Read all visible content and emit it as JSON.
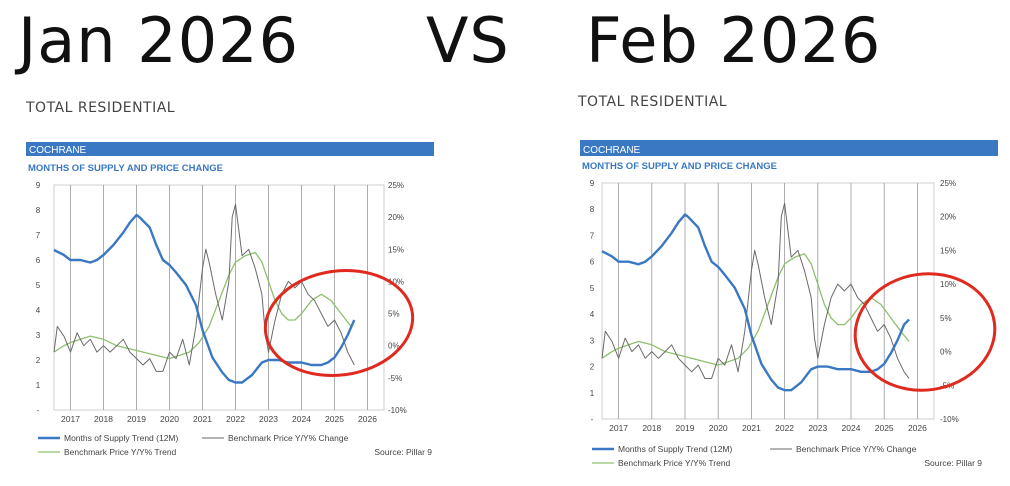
{
  "header": {
    "left_title": "Jan 2026",
    "vs_label": "VS",
    "right_title": "Feb 2026"
  },
  "chart_data": [
    {
      "type": "line",
      "section_title": "TOTAL RESIDENTIAL",
      "region_label": "COCHRANE",
      "title": "MONTHS OF SUPPLY AND PRICE CHANGE",
      "x_ticks": [
        "2017",
        "2018",
        "2019",
        "2020",
        "2021",
        "2022",
        "2023",
        "2024",
        "2025",
        "2026"
      ],
      "y_left_ticks": [
        "9",
        "8",
        "7",
        "6",
        "5",
        "4",
        "3",
        "2",
        "1",
        "-"
      ],
      "y_right_ticks": [
        "25%",
        "20%",
        "15%",
        "10%",
        "5%",
        "0%",
        "-5%",
        "-10%"
      ],
      "y_left_range": [
        0,
        9
      ],
      "y_right_range": [
        -10,
        25
      ],
      "x_range": [
        2016.5,
        2026.5
      ],
      "grid": "vertical",
      "legend": {
        "position": "bottom-left",
        "entries": [
          "Months of Supply Trend (12M)",
          "Benchmark Price Y/Y% Change",
          "Benchmark Price Y/Y% Trend"
        ]
      },
      "source": "Source: Pillar 9",
      "annotation": "red-circle",
      "series": [
        {
          "name": "Months of Supply Trend (12M)",
          "axis": "left",
          "color": "#3a78c4",
          "x": [
            2016.5,
            2016.8,
            2017,
            2017.3,
            2017.6,
            2017.8,
            2018,
            2018.3,
            2018.6,
            2018.8,
            2019,
            2019.1,
            2019.4,
            2019.6,
            2019.8,
            2020,
            2020.2,
            2020.5,
            2020.8,
            2021,
            2021.3,
            2021.6,
            2021.8,
            2022,
            2022.2,
            2022.5,
            2022.8,
            2023,
            2023.3,
            2023.6,
            2023.8,
            2024,
            2024.3,
            2024.6,
            2024.8,
            2025,
            2025.2,
            2025.4,
            2025.6
          ],
          "y": [
            6.4,
            6.2,
            6.0,
            6.0,
            5.9,
            6.0,
            6.2,
            6.6,
            7.1,
            7.5,
            7.8,
            7.7,
            7.3,
            6.6,
            6.0,
            5.8,
            5.5,
            5.0,
            4.2,
            3.2,
            2.1,
            1.5,
            1.2,
            1.1,
            1.1,
            1.4,
            1.9,
            2.0,
            2.0,
            1.9,
            1.9,
            1.9,
            1.8,
            1.8,
            1.9,
            2.1,
            2.5,
            3.0,
            3.6
          ]
        },
        {
          "name": "Benchmark Price Y/Y% Change",
          "axis": "right",
          "color": "#6a6a6a",
          "x": [
            2016.5,
            2016.6,
            2016.8,
            2017,
            2017.2,
            2017.4,
            2017.6,
            2017.8,
            2018,
            2018.2,
            2018.4,
            2018.6,
            2018.8,
            2019,
            2019.2,
            2019.4,
            2019.6,
            2019.8,
            2020,
            2020.2,
            2020.4,
            2020.6,
            2020.8,
            2021,
            2021.1,
            2021.2,
            2021.4,
            2021.6,
            2021.8,
            2021.9,
            2022,
            2022.1,
            2022.2,
            2022.4,
            2022.6,
            2022.8,
            2022.9,
            2023,
            2023.2,
            2023.4,
            2023.6,
            2023.8,
            2024,
            2024.2,
            2024.4,
            2024.6,
            2024.8,
            2025,
            2025.2,
            2025.4,
            2025.6
          ],
          "y": [
            -1,
            3,
            1.5,
            -1,
            2,
            0,
            1,
            -1,
            0,
            -1,
            0,
            1,
            -1,
            -2,
            -3,
            -2,
            -4,
            -4,
            -1,
            -2,
            1,
            -3,
            3,
            12,
            15,
            13,
            8,
            4,
            10,
            20,
            22,
            18,
            14,
            15,
            12,
            8,
            2,
            -1,
            4,
            8,
            10,
            9,
            10,
            8,
            7,
            5,
            3,
            4,
            2,
            -1,
            -3
          ]
        },
        {
          "name": "Benchmark Price Y/Y% Trend",
          "axis": "right",
          "color": "#8dc06e",
          "x": [
            2016.5,
            2016.8,
            2017,
            2017.3,
            2017.6,
            2018,
            2018.4,
            2018.8,
            2019.2,
            2019.6,
            2020,
            2020.3,
            2020.6,
            2020.9,
            2021.2,
            2021.5,
            2021.8,
            2022,
            2022.3,
            2022.6,
            2022.8,
            2023,
            2023.2,
            2023.4,
            2023.6,
            2023.8,
            2024,
            2024.3,
            2024.6,
            2024.9,
            2025.2,
            2025.5
          ],
          "y": [
            -1,
            0,
            0.5,
            1,
            1.5,
            1,
            0,
            -0.5,
            -1,
            -1.5,
            -2,
            -1.5,
            -1,
            0.5,
            3,
            7,
            11,
            13,
            14,
            14.5,
            13,
            10,
            7,
            5,
            4,
            4,
            5,
            7,
            8,
            7,
            5,
            3
          ]
        }
      ]
    },
    {
      "type": "line",
      "section_title": "TOTAL RESIDENTIAL",
      "region_label": "COCHRANE",
      "title": "MONTHS OF SUPPLY AND PRICE CHANGE",
      "x_ticks": [
        "2017",
        "2018",
        "2019",
        "2020",
        "2021",
        "2022",
        "2023",
        "2024",
        "2025",
        "2026"
      ],
      "y_left_ticks": [
        "9",
        "8",
        "7",
        "6",
        "5",
        "4",
        "3",
        "2",
        "1",
        "-"
      ],
      "y_right_ticks": [
        "25%",
        "20%",
        "15%",
        "10%",
        "5%",
        "0%",
        "-5%",
        "-10%"
      ],
      "y_left_range": [
        0,
        9
      ],
      "y_right_range": [
        -10,
        25
      ],
      "x_range": [
        2016.5,
        2026.5
      ],
      "grid": "vertical",
      "legend": {
        "position": "bottom-left",
        "entries": [
          "Months of Supply Trend (12M)",
          "Benchmark Price Y/Y% Change",
          "Benchmark Price Y/Y% Trend"
        ]
      },
      "source": "Source: Pillar 9",
      "annotation": "red-circle",
      "series": [
        {
          "name": "Months of Supply Trend (12M)",
          "axis": "left",
          "color": "#3a78c4",
          "x": [
            2016.5,
            2016.8,
            2017,
            2017.3,
            2017.6,
            2017.8,
            2018,
            2018.3,
            2018.6,
            2018.8,
            2019,
            2019.1,
            2019.4,
            2019.6,
            2019.8,
            2020,
            2020.2,
            2020.5,
            2020.8,
            2021,
            2021.3,
            2021.6,
            2021.8,
            2022,
            2022.2,
            2022.5,
            2022.8,
            2023,
            2023.3,
            2023.6,
            2023.8,
            2024,
            2024.3,
            2024.6,
            2024.8,
            2025,
            2025.2,
            2025.4,
            2025.6,
            2025.75
          ],
          "y": [
            6.4,
            6.2,
            6.0,
            6.0,
            5.9,
            6.0,
            6.2,
            6.6,
            7.1,
            7.5,
            7.8,
            7.7,
            7.3,
            6.6,
            6.0,
            5.8,
            5.5,
            5.0,
            4.2,
            3.2,
            2.1,
            1.5,
            1.2,
            1.1,
            1.1,
            1.4,
            1.9,
            2.0,
            2.0,
            1.9,
            1.9,
            1.9,
            1.8,
            1.8,
            1.9,
            2.1,
            2.5,
            3.0,
            3.6,
            3.8
          ]
        },
        {
          "name": "Benchmark Price Y/Y% Change",
          "axis": "right",
          "color": "#6a6a6a",
          "x": [
            2016.5,
            2016.6,
            2016.8,
            2017,
            2017.2,
            2017.4,
            2017.6,
            2017.8,
            2018,
            2018.2,
            2018.4,
            2018.6,
            2018.8,
            2019,
            2019.2,
            2019.4,
            2019.6,
            2019.8,
            2020,
            2020.2,
            2020.4,
            2020.6,
            2020.8,
            2021,
            2021.1,
            2021.2,
            2021.4,
            2021.6,
            2021.8,
            2021.9,
            2022,
            2022.1,
            2022.2,
            2022.4,
            2022.6,
            2022.8,
            2022.9,
            2023,
            2023.2,
            2023.4,
            2023.6,
            2023.8,
            2024,
            2024.2,
            2024.4,
            2024.6,
            2024.8,
            2025,
            2025.2,
            2025.4,
            2025.6,
            2025.75
          ],
          "y": [
            -1,
            3,
            1.5,
            -1,
            2,
            0,
            1,
            -1,
            0,
            -1,
            0,
            1,
            -1,
            -2,
            -3,
            -2,
            -4,
            -4,
            -1,
            -2,
            1,
            -3,
            3,
            12,
            15,
            13,
            8,
            4,
            10,
            20,
            22,
            18,
            14,
            15,
            12,
            8,
            2,
            -1,
            4,
            8,
            10,
            9,
            10,
            8,
            7,
            5,
            3,
            4,
            2,
            -1,
            -3,
            -4
          ]
        },
        {
          "name": "Benchmark Price Y/Y% Trend",
          "axis": "right",
          "color": "#8dc06e",
          "x": [
            2016.5,
            2016.8,
            2017,
            2017.3,
            2017.6,
            2018,
            2018.4,
            2018.8,
            2019.2,
            2019.6,
            2020,
            2020.3,
            2020.6,
            2020.9,
            2021.2,
            2021.5,
            2021.8,
            2022,
            2022.3,
            2022.6,
            2022.8,
            2023,
            2023.2,
            2023.4,
            2023.6,
            2023.8,
            2024,
            2024.3,
            2024.6,
            2024.9,
            2025.2,
            2025.5,
            2025.75
          ],
          "y": [
            -1,
            0,
            0.5,
            1,
            1.5,
            1,
            0,
            -0.5,
            -1,
            -1.5,
            -2,
            -1.5,
            -1,
            0.5,
            3,
            7,
            11,
            13,
            14,
            14.5,
            13,
            10,
            7,
            5,
            4,
            4,
            5,
            7,
            8,
            7,
            5,
            3,
            1.5
          ]
        }
      ]
    }
  ],
  "colors": {
    "banner": "#3a78c4",
    "title_blue": "#3a78c4",
    "annotation": "#e02a1f"
  }
}
